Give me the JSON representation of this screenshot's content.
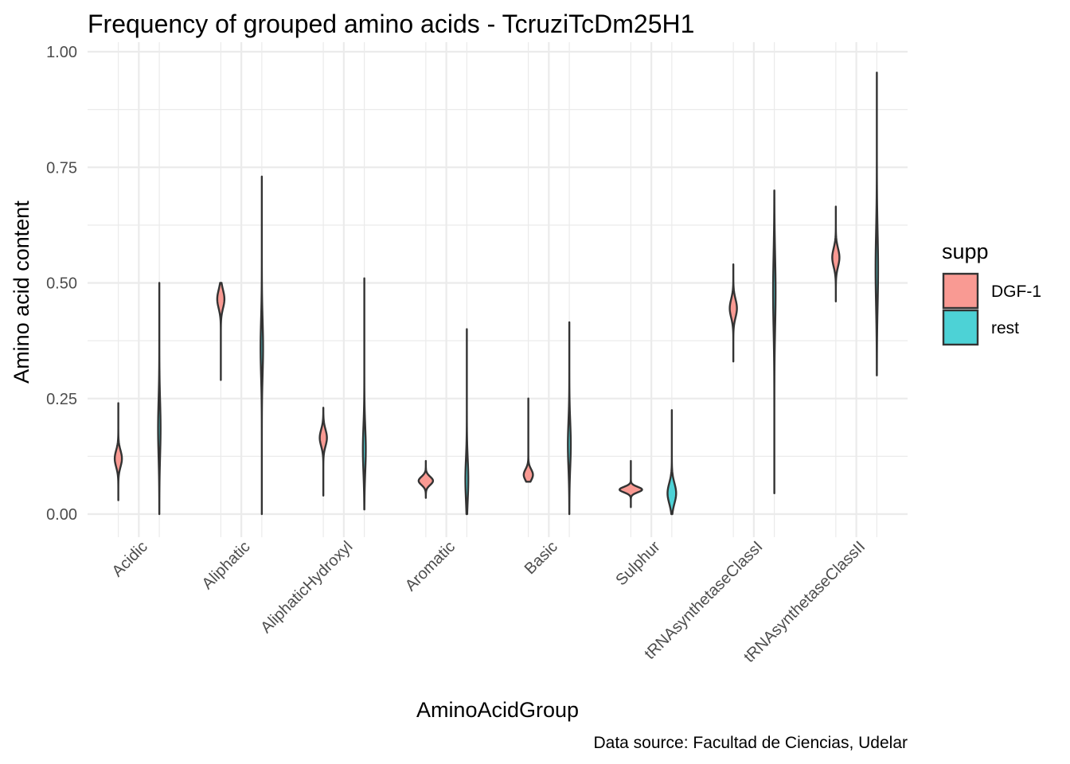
{
  "chart_data": {
    "type": "violin",
    "title": "Frequency of grouped amino acids - TcruziTcDm25H1",
    "xlabel": "AminoAcidGroup",
    "ylabel": "Amino acid content",
    "caption": "Data source: Facultad de Ciencias, Udelar",
    "ylim": [
      0,
      1
    ],
    "yticks": [
      0,
      0.25,
      0.5,
      0.75,
      1.0
    ],
    "ytick_labels": [
      "0.00",
      "0.25",
      "0.50",
      "0.75",
      "1.00"
    ],
    "grid": true,
    "legend": {
      "title": "supp",
      "position": "right"
    },
    "categories": [
      "Acidic",
      "Aliphatic",
      "AliphaticHydroxyl",
      "Aromatic",
      "Basic",
      "Sulphur",
      "tRNAsynthetaseClassI",
      "tRNAsynthetaseClassII"
    ],
    "series": [
      {
        "name": "DGF-1",
        "color": "#F8766D",
        "violins": [
          {
            "min": 0.03,
            "max": 0.24,
            "mode": 0.12,
            "halfwidth": 0.035,
            "spread": 0.018
          },
          {
            "min": 0.29,
            "max": 0.5,
            "mode": 0.465,
            "halfwidth": 0.035,
            "spread": 0.02
          },
          {
            "min": 0.04,
            "max": 0.23,
            "mode": 0.165,
            "halfwidth": 0.035,
            "spread": 0.018
          },
          {
            "min": 0.035,
            "max": 0.115,
            "mode": 0.072,
            "halfwidth": 0.07,
            "spread": 0.009
          },
          {
            "min": 0.07,
            "max": 0.25,
            "mode": 0.085,
            "halfwidth": 0.045,
            "spread": 0.012
          },
          {
            "min": 0.015,
            "max": 0.115,
            "mode": 0.053,
            "halfwidth": 0.11,
            "spread": 0.006
          },
          {
            "min": 0.33,
            "max": 0.54,
            "mode": 0.445,
            "halfwidth": 0.035,
            "spread": 0.02
          },
          {
            "min": 0.46,
            "max": 0.665,
            "mode": 0.555,
            "halfwidth": 0.035,
            "spread": 0.02
          }
        ]
      },
      {
        "name": "rest",
        "color": "#00BFC4",
        "violins": [
          {
            "min": 0.0,
            "max": 0.5,
            "mode": 0.185,
            "halfwidth": 0.012,
            "spread": 0.06
          },
          {
            "min": 0.0,
            "max": 0.73,
            "mode": 0.36,
            "halfwidth": 0.012,
            "spread": 0.06
          },
          {
            "min": 0.01,
            "max": 0.51,
            "mode": 0.14,
            "halfwidth": 0.014,
            "spread": 0.05
          },
          {
            "min": 0.0,
            "max": 0.4,
            "mode": 0.075,
            "halfwidth": 0.014,
            "spread": 0.045
          },
          {
            "min": 0.0,
            "max": 0.415,
            "mode": 0.15,
            "halfwidth": 0.014,
            "spread": 0.05
          },
          {
            "min": 0.0,
            "max": 0.225,
            "mode": 0.045,
            "halfwidth": 0.042,
            "spread": 0.022
          },
          {
            "min": 0.045,
            "max": 0.7,
            "mode": 0.48,
            "halfwidth": 0.012,
            "spread": 0.08
          },
          {
            "min": 0.3,
            "max": 0.955,
            "mode": 0.53,
            "halfwidth": 0.012,
            "spread": 0.08
          }
        ]
      }
    ]
  }
}
